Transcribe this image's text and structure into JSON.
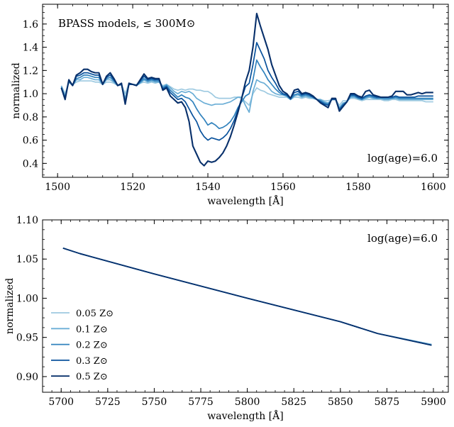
{
  "chart_data": [
    {
      "type": "line",
      "annotation_left": "BPASS models, ≤ 300M⊙",
      "annotation_right": "log(age)=6.0",
      "xlabel": "wavelength [Å]",
      "ylabel": "normalized",
      "xlim": [
        1496,
        1604
      ],
      "ylim": [
        0.28,
        1.77
      ],
      "xticks": [
        1500,
        1520,
        1540,
        1560,
        1580,
        1600
      ],
      "xtick_labels": [
        "1500",
        "1520",
        "1540",
        "1560",
        "1580",
        "1600"
      ],
      "yticks": [
        0.4,
        0.6,
        0.8,
        1.0,
        1.2,
        1.4,
        1.6
      ],
      "ytick_labels": [
        "0.4",
        "0.6",
        "0.8",
        "1.0",
        "1.2",
        "1.4",
        "1.6"
      ],
      "x": [
        1501,
        1502,
        1503,
        1504,
        1505,
        1506,
        1507,
        1508,
        1509,
        1510,
        1511,
        1512,
        1513,
        1514,
        1515,
        1516,
        1517,
        1518,
        1519,
        1520,
        1521,
        1522,
        1523,
        1524,
        1525,
        1526,
        1527,
        1528,
        1529,
        1530,
        1531,
        1532,
        1533,
        1534,
        1535,
        1536,
        1537,
        1538,
        1539,
        1540,
        1541,
        1542,
        1543,
        1544,
        1545,
        1546,
        1547,
        1548,
        1549,
        1550,
        1551,
        1552,
        1553,
        1554,
        1555,
        1556,
        1557,
        1558,
        1559,
        1560,
        1561,
        1562,
        1563,
        1564,
        1565,
        1566,
        1567,
        1568,
        1569,
        1570,
        1571,
        1572,
        1573,
        1574,
        1575,
        1576,
        1577,
        1578,
        1579,
        1580,
        1581,
        1582,
        1583,
        1584,
        1585,
        1586,
        1587,
        1588,
        1589,
        1590,
        1591,
        1592,
        1593,
        1594,
        1595,
        1596,
        1597,
        1598,
        1599,
        1600
      ],
      "series": [
        {
          "color": "#9ecae1",
          "values": [
            1.07,
            1.0,
            1.1,
            1.08,
            1.1,
            1.11,
            1.11,
            1.11,
            1.11,
            1.1,
            1.1,
            1.08,
            1.1,
            1.1,
            1.09,
            1.07,
            1.08,
            1.0,
            1.09,
            1.08,
            1.08,
            1.09,
            1.1,
            1.09,
            1.1,
            1.09,
            1.1,
            1.07,
            1.08,
            1.06,
            1.04,
            1.03,
            1.04,
            1.03,
            1.04,
            1.04,
            1.03,
            1.03,
            1.02,
            1.02,
            1.0,
            0.97,
            0.96,
            0.96,
            0.96,
            0.96,
            0.97,
            0.97,
            0.96,
            0.93,
            0.9,
            1.0,
            1.05,
            1.03,
            1.02,
            1.0,
            0.99,
            0.98,
            0.97,
            0.97,
            0.97,
            0.95,
            0.97,
            0.97,
            0.96,
            0.97,
            0.96,
            0.96,
            0.95,
            0.95,
            0.94,
            0.94,
            0.95,
            0.95,
            0.9,
            0.94,
            0.94,
            0.96,
            0.96,
            0.95,
            0.94,
            0.95,
            0.95,
            0.95,
            0.95,
            0.95,
            0.94,
            0.94,
            0.95,
            0.95,
            0.94,
            0.94,
            0.94,
            0.94,
            0.94,
            0.94,
            0.94,
            0.93,
            0.93,
            0.93
          ]
        },
        {
          "color": "#6baed6",
          "values": [
            1.06,
            0.98,
            1.1,
            1.07,
            1.12,
            1.12,
            1.14,
            1.14,
            1.13,
            1.12,
            1.12,
            1.08,
            1.12,
            1.12,
            1.1,
            1.07,
            1.08,
            0.96,
            1.08,
            1.08,
            1.07,
            1.09,
            1.12,
            1.1,
            1.11,
            1.1,
            1.1,
            1.06,
            1.08,
            1.05,
            1.02,
            1.0,
            1.02,
            1.01,
            1.02,
            1.0,
            0.96,
            0.94,
            0.92,
            0.91,
            0.9,
            0.91,
            0.91,
            0.91,
            0.92,
            0.93,
            0.95,
            0.97,
            0.97,
            0.9,
            0.84,
            1.02,
            1.12,
            1.1,
            1.09,
            1.06,
            1.02,
            1.0,
            0.99,
            0.99,
            0.98,
            0.95,
            0.98,
            0.99,
            0.97,
            0.98,
            0.97,
            0.96,
            0.95,
            0.95,
            0.93,
            0.92,
            0.95,
            0.95,
            0.88,
            0.92,
            0.93,
            0.97,
            0.97,
            0.96,
            0.95,
            0.96,
            0.97,
            0.96,
            0.96,
            0.96,
            0.95,
            0.95,
            0.96,
            0.96,
            0.95,
            0.95,
            0.95,
            0.95,
            0.95,
            0.95,
            0.95,
            0.95,
            0.95,
            0.95
          ]
        },
        {
          "color": "#3182bd",
          "values": [
            1.06,
            0.97,
            1.11,
            1.07,
            1.13,
            1.14,
            1.16,
            1.16,
            1.15,
            1.14,
            1.14,
            1.08,
            1.13,
            1.14,
            1.11,
            1.07,
            1.08,
            0.94,
            1.08,
            1.08,
            1.07,
            1.1,
            1.13,
            1.11,
            1.12,
            1.11,
            1.11,
            1.05,
            1.07,
            1.03,
            1.0,
            0.97,
            0.99,
            0.97,
            0.96,
            0.93,
            0.87,
            0.82,
            0.78,
            0.73,
            0.75,
            0.73,
            0.7,
            0.71,
            0.73,
            0.76,
            0.81,
            0.88,
            0.93,
            0.98,
            1.0,
            1.12,
            1.29,
            1.23,
            1.18,
            1.12,
            1.08,
            1.04,
            1.01,
            0.99,
            0.98,
            0.95,
            0.99,
            1.0,
            0.98,
            0.99,
            0.98,
            0.97,
            0.95,
            0.94,
            0.92,
            0.91,
            0.95,
            0.95,
            0.87,
            0.91,
            0.93,
            0.98,
            0.98,
            0.96,
            0.95,
            0.97,
            0.98,
            0.97,
            0.96,
            0.96,
            0.96,
            0.96,
            0.96,
            0.97,
            0.96,
            0.96,
            0.96,
            0.96,
            0.96,
            0.96,
            0.96,
            0.96,
            0.96,
            0.96
          ]
        },
        {
          "color": "#08519c",
          "values": [
            1.05,
            0.96,
            1.11,
            1.07,
            1.15,
            1.16,
            1.18,
            1.18,
            1.17,
            1.16,
            1.16,
            1.08,
            1.14,
            1.16,
            1.12,
            1.07,
            1.08,
            0.92,
            1.08,
            1.08,
            1.07,
            1.11,
            1.15,
            1.12,
            1.13,
            1.12,
            1.12,
            1.04,
            1.06,
            1.01,
            0.98,
            0.95,
            0.96,
            0.93,
            0.87,
            0.81,
            0.76,
            0.68,
            0.63,
            0.6,
            0.62,
            0.61,
            0.6,
            0.62,
            0.65,
            0.7,
            0.77,
            0.86,
            0.96,
            1.06,
            1.09,
            1.25,
            1.44,
            1.37,
            1.3,
            1.2,
            1.14,
            1.09,
            1.03,
            1.0,
            0.99,
            0.96,
            1.01,
            1.02,
            0.99,
            1.0,
            0.99,
            0.97,
            0.95,
            0.93,
            0.91,
            0.9,
            0.95,
            0.95,
            0.86,
            0.9,
            0.93,
            0.99,
            0.99,
            0.97,
            0.96,
            0.98,
            0.99,
            0.98,
            0.97,
            0.97,
            0.97,
            0.97,
            0.97,
            0.98,
            0.97,
            0.97,
            0.97,
            0.97,
            0.97,
            0.98,
            0.98,
            0.98,
            0.98,
            0.98
          ]
        },
        {
          "color": "#08306b",
          "values": [
            1.05,
            0.95,
            1.12,
            1.07,
            1.16,
            1.18,
            1.21,
            1.21,
            1.19,
            1.18,
            1.18,
            1.08,
            1.15,
            1.18,
            1.13,
            1.07,
            1.09,
            0.91,
            1.09,
            1.08,
            1.07,
            1.12,
            1.17,
            1.13,
            1.14,
            1.13,
            1.13,
            1.03,
            1.05,
            0.98,
            0.95,
            0.92,
            0.93,
            0.88,
            0.76,
            0.55,
            0.48,
            0.41,
            0.38,
            0.42,
            0.41,
            0.42,
            0.45,
            0.49,
            0.55,
            0.63,
            0.73,
            0.84,
            0.96,
            1.1,
            1.2,
            1.4,
            1.69,
            1.58,
            1.48,
            1.38,
            1.25,
            1.16,
            1.07,
            1.02,
            1.0,
            0.96,
            1.03,
            1.04,
            1.0,
            1.01,
            1.0,
            0.98,
            0.95,
            0.92,
            0.9,
            0.88,
            0.96,
            0.96,
            0.85,
            0.89,
            0.93,
            1.0,
            1.0,
            0.98,
            0.97,
            1.02,
            1.03,
            0.99,
            0.98,
            0.97,
            0.97,
            0.97,
            0.98,
            1.02,
            1.02,
            1.02,
            0.99,
            0.99,
            1.0,
            1.01,
            1.0,
            1.01,
            1.01,
            1.01
          ]
        }
      ]
    },
    {
      "type": "line",
      "annotation_right": "log(age)=6.0",
      "xlabel": "wavelength [Å]",
      "ylabel": "normalized",
      "xlim": [
        5690,
        5908
      ],
      "ylim": [
        0.88,
        1.1
      ],
      "xticks": [
        5700,
        5725,
        5750,
        5775,
        5800,
        5825,
        5850,
        5875,
        5900
      ],
      "xtick_labels": [
        "5700",
        "5725",
        "5750",
        "5775",
        "5800",
        "5825",
        "5850",
        "5875",
        "5900"
      ],
      "yticks": [
        0.9,
        0.95,
        1.0,
        1.05,
        1.1
      ],
      "ytick_labels": [
        "0.90",
        "0.95",
        "1.00",
        "1.05",
        "1.10"
      ],
      "legend_placement": "lower-left",
      "x": [
        5701,
        5710,
        5750,
        5800,
        5850,
        5870,
        5899
      ],
      "series": [
        {
          "name": "0.05 Z⊙",
          "color": "#9ecae1",
          "values": [
            1.064,
            1.057,
            1.031,
            1.0,
            0.97,
            0.955,
            0.941
          ]
        },
        {
          "name": "0.1 Z⊙",
          "color": "#6baed6",
          "values": [
            1.064,
            1.057,
            1.031,
            1.0,
            0.97,
            0.955,
            0.941
          ]
        },
        {
          "name": "0.2 Z⊙",
          "color": "#3182bd",
          "values": [
            1.064,
            1.057,
            1.031,
            1.0,
            0.97,
            0.955,
            0.94
          ]
        },
        {
          "name": "0.3 Z⊙",
          "color": "#08519c",
          "values": [
            1.064,
            1.057,
            1.031,
            1.0,
            0.97,
            0.955,
            0.94
          ]
        },
        {
          "name": "0.5 Z⊙",
          "color": "#08306b",
          "values": [
            1.064,
            1.057,
            1.031,
            1.0,
            0.97,
            0.955,
            0.94
          ]
        }
      ]
    }
  ]
}
